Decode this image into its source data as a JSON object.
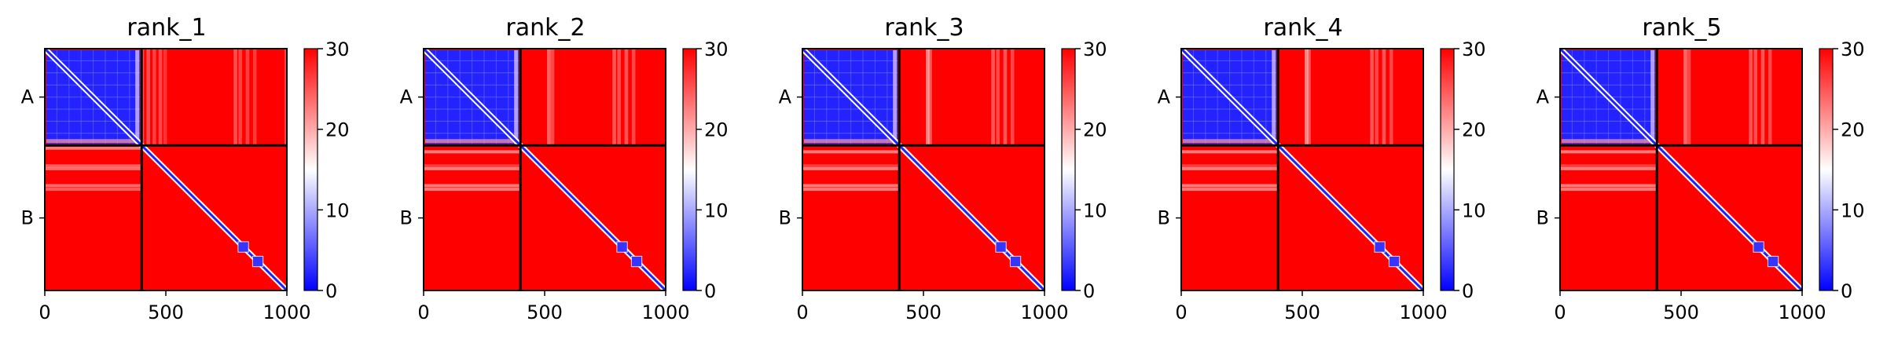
{
  "chart_data": [
    {
      "type": "heatmap",
      "title": "rank_1",
      "x_ticks": [
        "0",
        "500",
        "1000"
      ],
      "x_tick_values": [
        0,
        500,
        1000
      ],
      "y_ticks": [
        "A",
        "B"
      ],
      "chain_boundary": 400,
      "matrix_size": 1000,
      "colorbar": {
        "min": 0,
        "max": 30,
        "ticks": [
          "0",
          "10",
          "20",
          "30"
        ],
        "tick_values": [
          0,
          10,
          20,
          30
        ],
        "colors": [
          "#0000ff",
          "#ffffff",
          "#ff0000"
        ]
      },
      "row_stripes_in_B": [
        [
          5,
          0.8
        ],
        [
          78,
          0.6
        ],
        [
          90,
          0.7
        ],
        [
          160,
          0.7
        ],
        [
          175,
          0.6
        ]
      ],
      "col_stripes_in_A": [
        [
          395,
          0.55
        ],
        [
          420,
          0.55
        ],
        [
          445,
          0.45
        ],
        [
          470,
          0.5
        ],
        [
          490,
          0.35
        ],
        [
          780,
          0.55
        ],
        [
          800,
          0.45
        ],
        [
          830,
          0.45
        ],
        [
          860,
          0.4
        ],
        [
          990,
          0.5
        ]
      ],
      "domain_blocks": [
        [
          800,
          840
        ],
        [
          860,
          900
        ]
      ]
    },
    {
      "type": "heatmap",
      "title": "rank_2",
      "x_ticks": [
        "0",
        "500",
        "1000"
      ],
      "x_tick_values": [
        0,
        500,
        1000
      ],
      "y_ticks": [
        "A",
        "B"
      ],
      "chain_boundary": 400,
      "matrix_size": 1000,
      "colorbar": {
        "min": 0,
        "max": 30,
        "ticks": [
          "0",
          "10",
          "20",
          "30"
        ],
        "tick_values": [
          0,
          10,
          20,
          30
        ],
        "colors": [
          "#0000ff",
          "#ffffff",
          "#ff0000"
        ]
      },
      "row_stripes_in_B": [
        [
          20,
          0.8
        ],
        [
          78,
          0.4
        ],
        [
          90,
          0.8
        ],
        [
          160,
          0.8
        ],
        [
          175,
          0.8
        ]
      ],
      "col_stripes_in_A": [
        [
          510,
          0.7
        ],
        [
          525,
          0.5
        ],
        [
          780,
          0.6
        ],
        [
          800,
          0.55
        ],
        [
          830,
          0.6
        ],
        [
          860,
          0.5
        ]
      ],
      "domain_blocks": [
        [
          800,
          840
        ],
        [
          860,
          900
        ]
      ]
    },
    {
      "type": "heatmap",
      "title": "rank_3",
      "x_ticks": [
        "0",
        "500",
        "1000"
      ],
      "x_tick_values": [
        0,
        500,
        1000
      ],
      "y_ticks": [
        "A",
        "B"
      ],
      "chain_boundary": 400,
      "matrix_size": 1000,
      "colorbar": {
        "min": 0,
        "max": 30,
        "ticks": [
          "0",
          "10",
          "20",
          "30"
        ],
        "tick_values": [
          0,
          10,
          20,
          30
        ],
        "colors": [
          "#0000ff",
          "#ffffff",
          "#ff0000"
        ]
      },
      "row_stripes_in_B": [
        [
          20,
          0.8
        ],
        [
          78,
          0.4
        ],
        [
          90,
          0.8
        ],
        [
          160,
          0.8
        ],
        [
          175,
          0.8
        ]
      ],
      "col_stripes_in_A": [
        [
          510,
          0.9
        ],
        [
          520,
          0.6
        ],
        [
          780,
          0.6
        ],
        [
          800,
          0.5
        ],
        [
          830,
          0.6
        ],
        [
          860,
          0.5
        ]
      ],
      "domain_blocks": [
        [
          800,
          840
        ],
        [
          860,
          900
        ]
      ]
    },
    {
      "type": "heatmap",
      "title": "rank_4",
      "x_ticks": [
        "0",
        "500",
        "1000"
      ],
      "x_tick_values": [
        0,
        500,
        1000
      ],
      "y_ticks": [
        "A",
        "B"
      ],
      "chain_boundary": 400,
      "matrix_size": 1000,
      "colorbar": {
        "min": 0,
        "max": 30,
        "ticks": [
          "0",
          "10",
          "20",
          "30"
        ],
        "tick_values": [
          0,
          10,
          20,
          30
        ],
        "colors": [
          "#0000ff",
          "#ffffff",
          "#ff0000"
        ]
      },
      "row_stripes_in_B": [
        [
          20,
          0.8
        ],
        [
          78,
          0.4
        ],
        [
          90,
          0.8
        ],
        [
          160,
          0.8
        ],
        [
          175,
          0.8
        ]
      ],
      "col_stripes_in_A": [
        [
          510,
          0.9
        ],
        [
          520,
          0.6
        ],
        [
          780,
          0.6
        ],
        [
          800,
          0.5
        ],
        [
          830,
          0.6
        ],
        [
          860,
          0.5
        ]
      ],
      "domain_blocks": [
        [
          800,
          840
        ],
        [
          860,
          900
        ]
      ]
    },
    {
      "type": "heatmap",
      "title": "rank_5",
      "x_ticks": [
        "0",
        "500",
        "1000"
      ],
      "x_tick_values": [
        0,
        500,
        1000
      ],
      "y_ticks": [
        "A",
        "B"
      ],
      "chain_boundary": 400,
      "matrix_size": 1000,
      "colorbar": {
        "min": 0,
        "max": 30,
        "ticks": [
          "0",
          "10",
          "20",
          "30"
        ],
        "tick_values": [
          0,
          10,
          20,
          30
        ],
        "colors": [
          "#0000ff",
          "#ffffff",
          "#ff0000"
        ]
      },
      "row_stripes_in_B": [
        [
          20,
          0.8
        ],
        [
          78,
          0.4
        ],
        [
          90,
          0.8
        ],
        [
          160,
          0.8
        ],
        [
          175,
          0.8
        ]
      ],
      "col_stripes_in_A": [
        [
          510,
          0.7
        ],
        [
          525,
          0.5
        ],
        [
          780,
          0.6
        ],
        [
          800,
          0.55
        ],
        [
          830,
          0.6
        ],
        [
          860,
          0.5
        ]
      ],
      "domain_blocks": [
        [
          800,
          840
        ],
        [
          860,
          900
        ]
      ]
    }
  ]
}
